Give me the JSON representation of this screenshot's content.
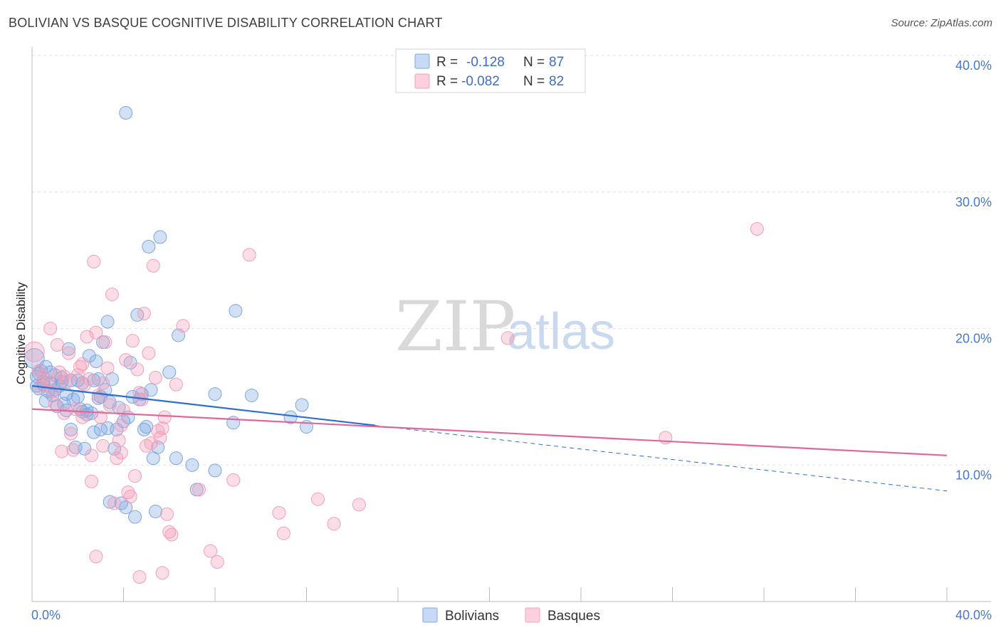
{
  "title": "BOLIVIAN VS BASQUE COGNITIVE DISABILITY CORRELATION CHART",
  "source": "Source: ZipAtlas.com",
  "watermark": {
    "zip": "ZIP",
    "atlas": "atlas"
  },
  "colors": {
    "bolivians": "#7ea6e0",
    "bolivians_line": "#2a6fd0",
    "basques": "#f29fb8",
    "basques_line": "#e0679a",
    "axis_text": "#4a78c4",
    "grid": "#e3e3e3"
  },
  "legend": {
    "r_label": "R =",
    "n_label": "N =",
    "rows": [
      {
        "series": "Bolivians",
        "r": "-0.128",
        "n": "87"
      },
      {
        "series": "Basques",
        "r": "-0.082",
        "n": "82"
      }
    ]
  },
  "chart_data": {
    "type": "scatter",
    "title": "BOLIVIAN VS BASQUE COGNITIVE DISABILITY CORRELATION CHART",
    "xlabel": "",
    "ylabel": "Cognitive Disability",
    "xlim": [
      0,
      40
    ],
    "ylim": [
      0,
      40
    ],
    "x_tick_labels": [
      "0.0%",
      "40.0%"
    ],
    "y_ticks": [
      10,
      20,
      30,
      40
    ],
    "y_tick_labels": [
      "10.0%",
      "20.0%",
      "30.0%",
      "40.0%"
    ],
    "grid": true,
    "legend_position": "top-center",
    "series": [
      {
        "name": "Bolivians",
        "points": [
          [
            0.1,
            17.8
          ],
          [
            0.2,
            16.5
          ],
          [
            0.3,
            15.6
          ],
          [
            0.4,
            16.9
          ],
          [
            0.5,
            16.1
          ],
          [
            0.6,
            17.2
          ],
          [
            0.7,
            15.4
          ],
          [
            0.8,
            16.0
          ],
          [
            0.9,
            15.1
          ],
          [
            1.0,
            16.6
          ],
          [
            1.1,
            14.3
          ],
          [
            1.2,
            15.8
          ],
          [
            1.3,
            16.4
          ],
          [
            1.4,
            14.5
          ],
          [
            1.5,
            15.2
          ],
          [
            1.6,
            18.5
          ],
          [
            1.7,
            16.2
          ],
          [
            1.8,
            14.8
          ],
          [
            1.9,
            11.3
          ],
          [
            2.0,
            15.0
          ],
          [
            2.1,
            14.1
          ],
          [
            2.2,
            16.0
          ],
          [
            2.3,
            11.2
          ],
          [
            2.4,
            14.0
          ],
          [
            2.5,
            18.0
          ],
          [
            2.6,
            13.8
          ],
          [
            2.7,
            16.2
          ],
          [
            2.8,
            17.6
          ],
          [
            2.9,
            16.3
          ],
          [
            3.0,
            12.6
          ],
          [
            3.1,
            19.0
          ],
          [
            3.2,
            15.5
          ],
          [
            3.3,
            20.5
          ],
          [
            3.4,
            14.6
          ],
          [
            3.5,
            16.3
          ],
          [
            3.6,
            11.2
          ],
          [
            3.7,
            12.6
          ],
          [
            3.8,
            14.2
          ],
          [
            3.9,
            7.2
          ],
          [
            4.0,
            13.2
          ],
          [
            4.1,
            35.8
          ],
          [
            4.2,
            13.5
          ],
          [
            4.3,
            17.5
          ],
          [
            4.4,
            15.0
          ],
          [
            4.5,
            6.2
          ],
          [
            4.6,
            21.0
          ],
          [
            4.7,
            14.8
          ],
          [
            4.8,
            15.2
          ],
          [
            4.9,
            12.6
          ],
          [
            5.0,
            12.8
          ],
          [
            5.1,
            26.0
          ],
          [
            5.2,
            15.5
          ],
          [
            5.3,
            10.5
          ],
          [
            5.4,
            6.6
          ],
          [
            5.5,
            11.3
          ],
          [
            5.6,
            26.7
          ],
          [
            6.0,
            16.8
          ],
          [
            6.3,
            10.5
          ],
          [
            6.4,
            19.5
          ],
          [
            7.0,
            10.0
          ],
          [
            7.2,
            8.2
          ],
          [
            8.0,
            9.6
          ],
          [
            8.0,
            15.2
          ],
          [
            8.8,
            13.1
          ],
          [
            8.9,
            21.3
          ],
          [
            9.6,
            15.1
          ],
          [
            11.3,
            13.5
          ],
          [
            11.8,
            14.4
          ],
          [
            12.0,
            12.8
          ],
          [
            0.2,
            15.8
          ],
          [
            0.5,
            15.9
          ],
          [
            0.8,
            16.8
          ],
          [
            1.0,
            15.5
          ],
          [
            1.5,
            14.0
          ],
          [
            2.0,
            16.2
          ],
          [
            2.4,
            13.7
          ],
          [
            2.9,
            14.9
          ],
          [
            3.3,
            12.7
          ],
          [
            3.4,
            7.3
          ],
          [
            4.1,
            6.9
          ],
          [
            1.7,
            12.6
          ],
          [
            0.6,
            14.7
          ],
          [
            2.2,
            13.9
          ],
          [
            3.0,
            15.0
          ],
          [
            1.3,
            16.1
          ],
          [
            0.3,
            16.7
          ],
          [
            2.7,
            12.4
          ]
        ]
      },
      {
        "name": "Basques",
        "points": [
          [
            0.1,
            18.3
          ],
          [
            0.3,
            16.9
          ],
          [
            0.5,
            16.5
          ],
          [
            0.7,
            16.2
          ],
          [
            0.8,
            20.0
          ],
          [
            0.9,
            15.4
          ],
          [
            1.1,
            18.8
          ],
          [
            1.2,
            16.8
          ],
          [
            1.3,
            11.0
          ],
          [
            1.4,
            13.8
          ],
          [
            1.5,
            16.1
          ],
          [
            1.6,
            18.2
          ],
          [
            1.7,
            12.3
          ],
          [
            1.8,
            11.1
          ],
          [
            1.9,
            14.1
          ],
          [
            2.0,
            16.6
          ],
          [
            2.1,
            17.2
          ],
          [
            2.2,
            17.4
          ],
          [
            2.3,
            15.9
          ],
          [
            2.4,
            19.4
          ],
          [
            2.5,
            16.3
          ],
          [
            2.6,
            8.8
          ],
          [
            2.7,
            24.9
          ],
          [
            2.8,
            3.3
          ],
          [
            2.9,
            15.1
          ],
          [
            3.0,
            13.5
          ],
          [
            3.1,
            16.0
          ],
          [
            3.2,
            19.0
          ],
          [
            3.3,
            17.1
          ],
          [
            3.4,
            14.4
          ],
          [
            3.5,
            22.5
          ],
          [
            3.6,
            7.2
          ],
          [
            3.7,
            10.5
          ],
          [
            3.8,
            11.8
          ],
          [
            3.9,
            12.9
          ],
          [
            4.0,
            14.0
          ],
          [
            4.1,
            17.7
          ],
          [
            4.2,
            8.0
          ],
          [
            4.3,
            7.7
          ],
          [
            4.4,
            19.1
          ],
          [
            4.5,
            9.2
          ],
          [
            4.6,
            17.0
          ],
          [
            4.7,
            15.3
          ],
          [
            4.8,
            14.8
          ],
          [
            4.9,
            21.1
          ],
          [
            5.0,
            11.4
          ],
          [
            5.1,
            18.2
          ],
          [
            5.2,
            11.6
          ],
          [
            5.3,
            24.6
          ],
          [
            5.4,
            16.4
          ],
          [
            5.5,
            12.5
          ],
          [
            5.6,
            12.0
          ],
          [
            5.7,
            12.7
          ],
          [
            5.8,
            13.5
          ],
          [
            5.9,
            6.4
          ],
          [
            6.0,
            5.1
          ],
          [
            6.1,
            4.9
          ],
          [
            6.3,
            15.9
          ],
          [
            6.6,
            20.2
          ],
          [
            7.3,
            8.2
          ],
          [
            7.8,
            3.7
          ],
          [
            8.1,
            2.9
          ],
          [
            8.8,
            8.9
          ],
          [
            9.5,
            25.4
          ],
          [
            10.8,
            6.5
          ],
          [
            11.0,
            5.0
          ],
          [
            12.5,
            7.5
          ],
          [
            13.2,
            5.7
          ],
          [
            14.3,
            7.1
          ],
          [
            20.8,
            19.3
          ],
          [
            27.7,
            12.0
          ],
          [
            31.7,
            27.3
          ],
          [
            4.7,
            1.8
          ],
          [
            5.7,
            2.1
          ],
          [
            3.9,
            10.9
          ],
          [
            2.6,
            10.7
          ],
          [
            1.0,
            14.5
          ],
          [
            2.2,
            13.5
          ],
          [
            0.4,
            15.7
          ],
          [
            2.8,
            19.7
          ],
          [
            1.4,
            16.5
          ],
          [
            3.1,
            11.4
          ]
        ]
      }
    ],
    "trend_lines": [
      {
        "series": "Bolivians",
        "x": [
          0,
          15
        ],
        "y": [
          15.8,
          12.9
        ],
        "dashed_extension_to": [
          40,
          8.1
        ]
      },
      {
        "series": "Basques",
        "x": [
          0,
          40
        ],
        "y": [
          14.1,
          10.7
        ]
      }
    ]
  }
}
